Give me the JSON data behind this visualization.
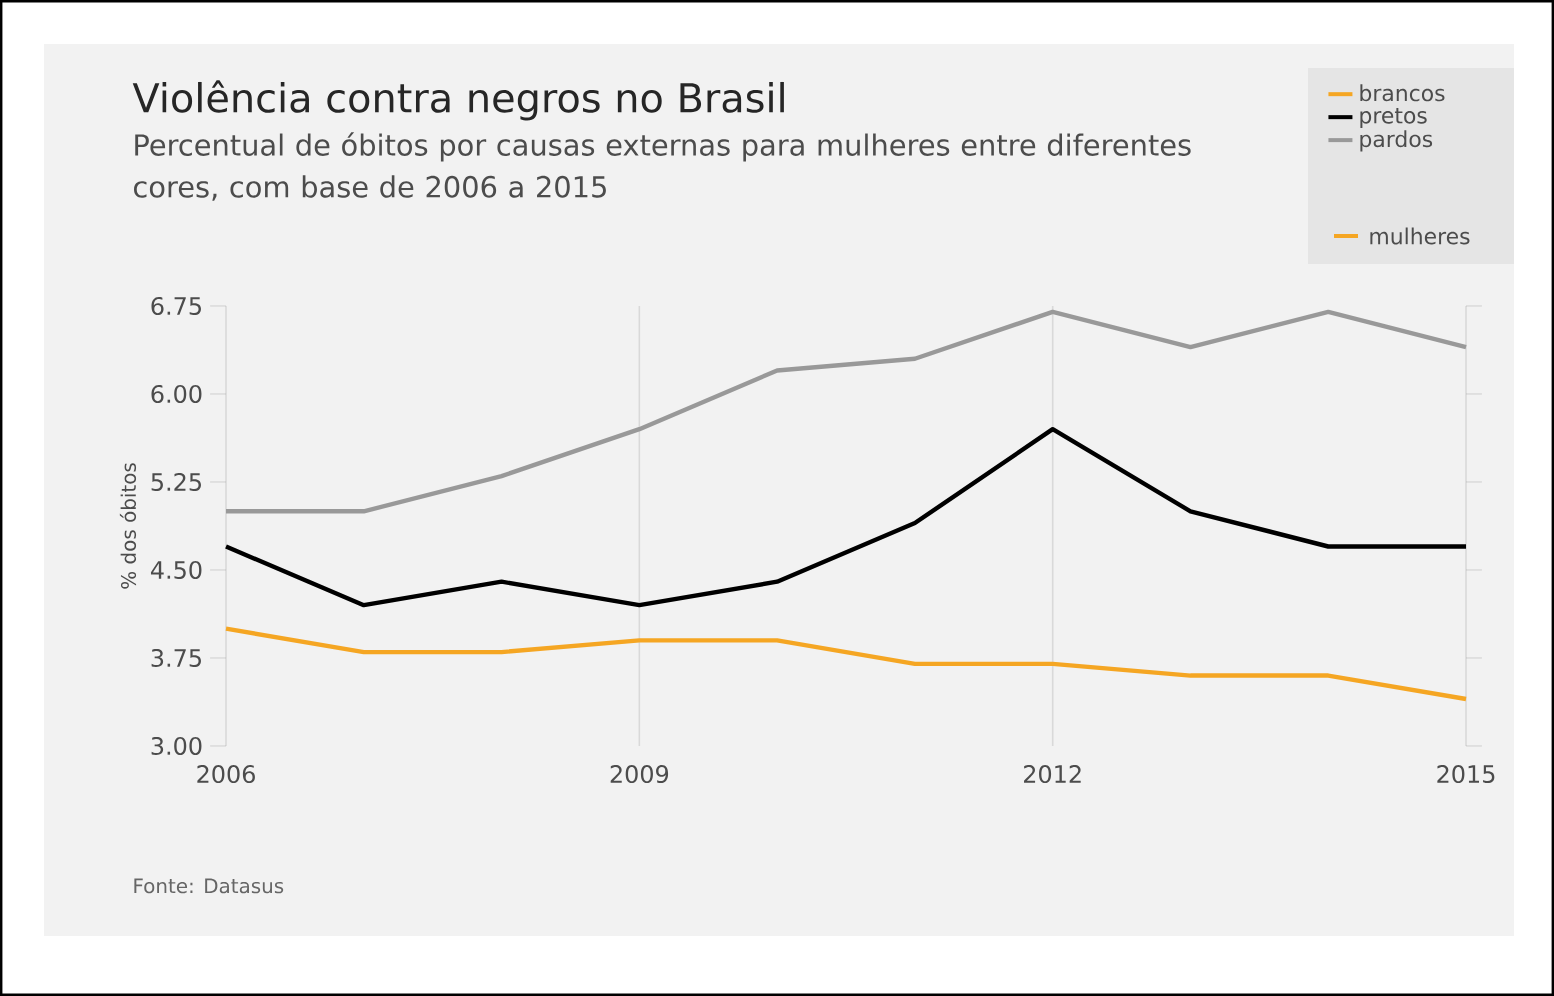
{
  "chart_data": {
    "type": "line",
    "title": "Violência contra negros no Brasil",
    "subtitle": "Percentual de óbitos por causas externas para mulheres entre diferentes cores, com base de 2006 a 2015",
    "ylabel": "% dos óbitos",
    "x": [
      2006,
      2007,
      2008,
      2009,
      2010,
      2011,
      2012,
      2013,
      2014,
      2015
    ],
    "series": [
      {
        "name": "brancos",
        "color": "#f5a623",
        "values": [
          4.0,
          3.8,
          3.8,
          3.9,
          3.9,
          3.7,
          3.7,
          3.6,
          3.6,
          3.4
        ]
      },
      {
        "name": "pretos",
        "color": "#000000",
        "values": [
          4.7,
          4.2,
          4.4,
          4.2,
          4.4,
          4.9,
          5.7,
          5.0,
          4.7,
          4.7
        ]
      },
      {
        "name": "pardos",
        "color": "#999999",
        "values": [
          5.0,
          5.0,
          5.3,
          5.7,
          6.2,
          6.3,
          6.7,
          6.4,
          6.7,
          6.4
        ]
      }
    ],
    "xlim": [
      2006,
      2015
    ],
    "xticks": [
      2006,
      2009,
      2012,
      2015
    ],
    "ylim": [
      3.0,
      6.75
    ],
    "yticks": [
      {
        "value": 3.0,
        "label": "3.00"
      },
      {
        "value": 3.75,
        "label": "3.75"
      },
      {
        "value": 4.5,
        "label": "4.50"
      },
      {
        "value": 5.25,
        "label": "5.25"
      },
      {
        "value": 6.0,
        "label": "6.00"
      },
      {
        "value": 6.75,
        "label": "6.75"
      }
    ],
    "grid": "x",
    "legend": "top right",
    "marker": "none",
    "line_style": "solid",
    "annotations": [
      "mulheres",
      "Fonte: Datasus"
    ]
  }
}
